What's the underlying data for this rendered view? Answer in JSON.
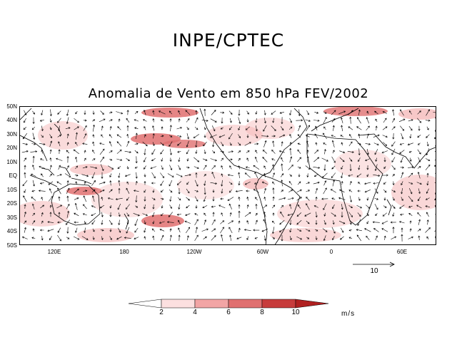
{
  "header": {
    "title": "INPE/CPTEC",
    "subtitle": "Anomalia de Vento em 850 hPa FEV/2002"
  },
  "map": {
    "lat_labels": [
      "50N",
      "40N",
      "30N",
      "20N",
      "10N",
      "EQ",
      "10S",
      "20S",
      "30S",
      "40S",
      "50S"
    ],
    "lon_labels": [
      "120E",
      "180",
      "120W",
      "60W",
      "0",
      "60E"
    ],
    "shading_color": "#f4b0b0",
    "shading_strong_color": "#e07070"
  },
  "reference_vector": {
    "label": "10"
  },
  "colorbar": {
    "labels": [
      "2",
      "4",
      "6",
      "8",
      "10"
    ],
    "colors": [
      "#ffffff",
      "#fce0e0",
      "#f2a5a5",
      "#e07070",
      "#c73c3c",
      "#b02020"
    ],
    "units": "m/s"
  }
}
